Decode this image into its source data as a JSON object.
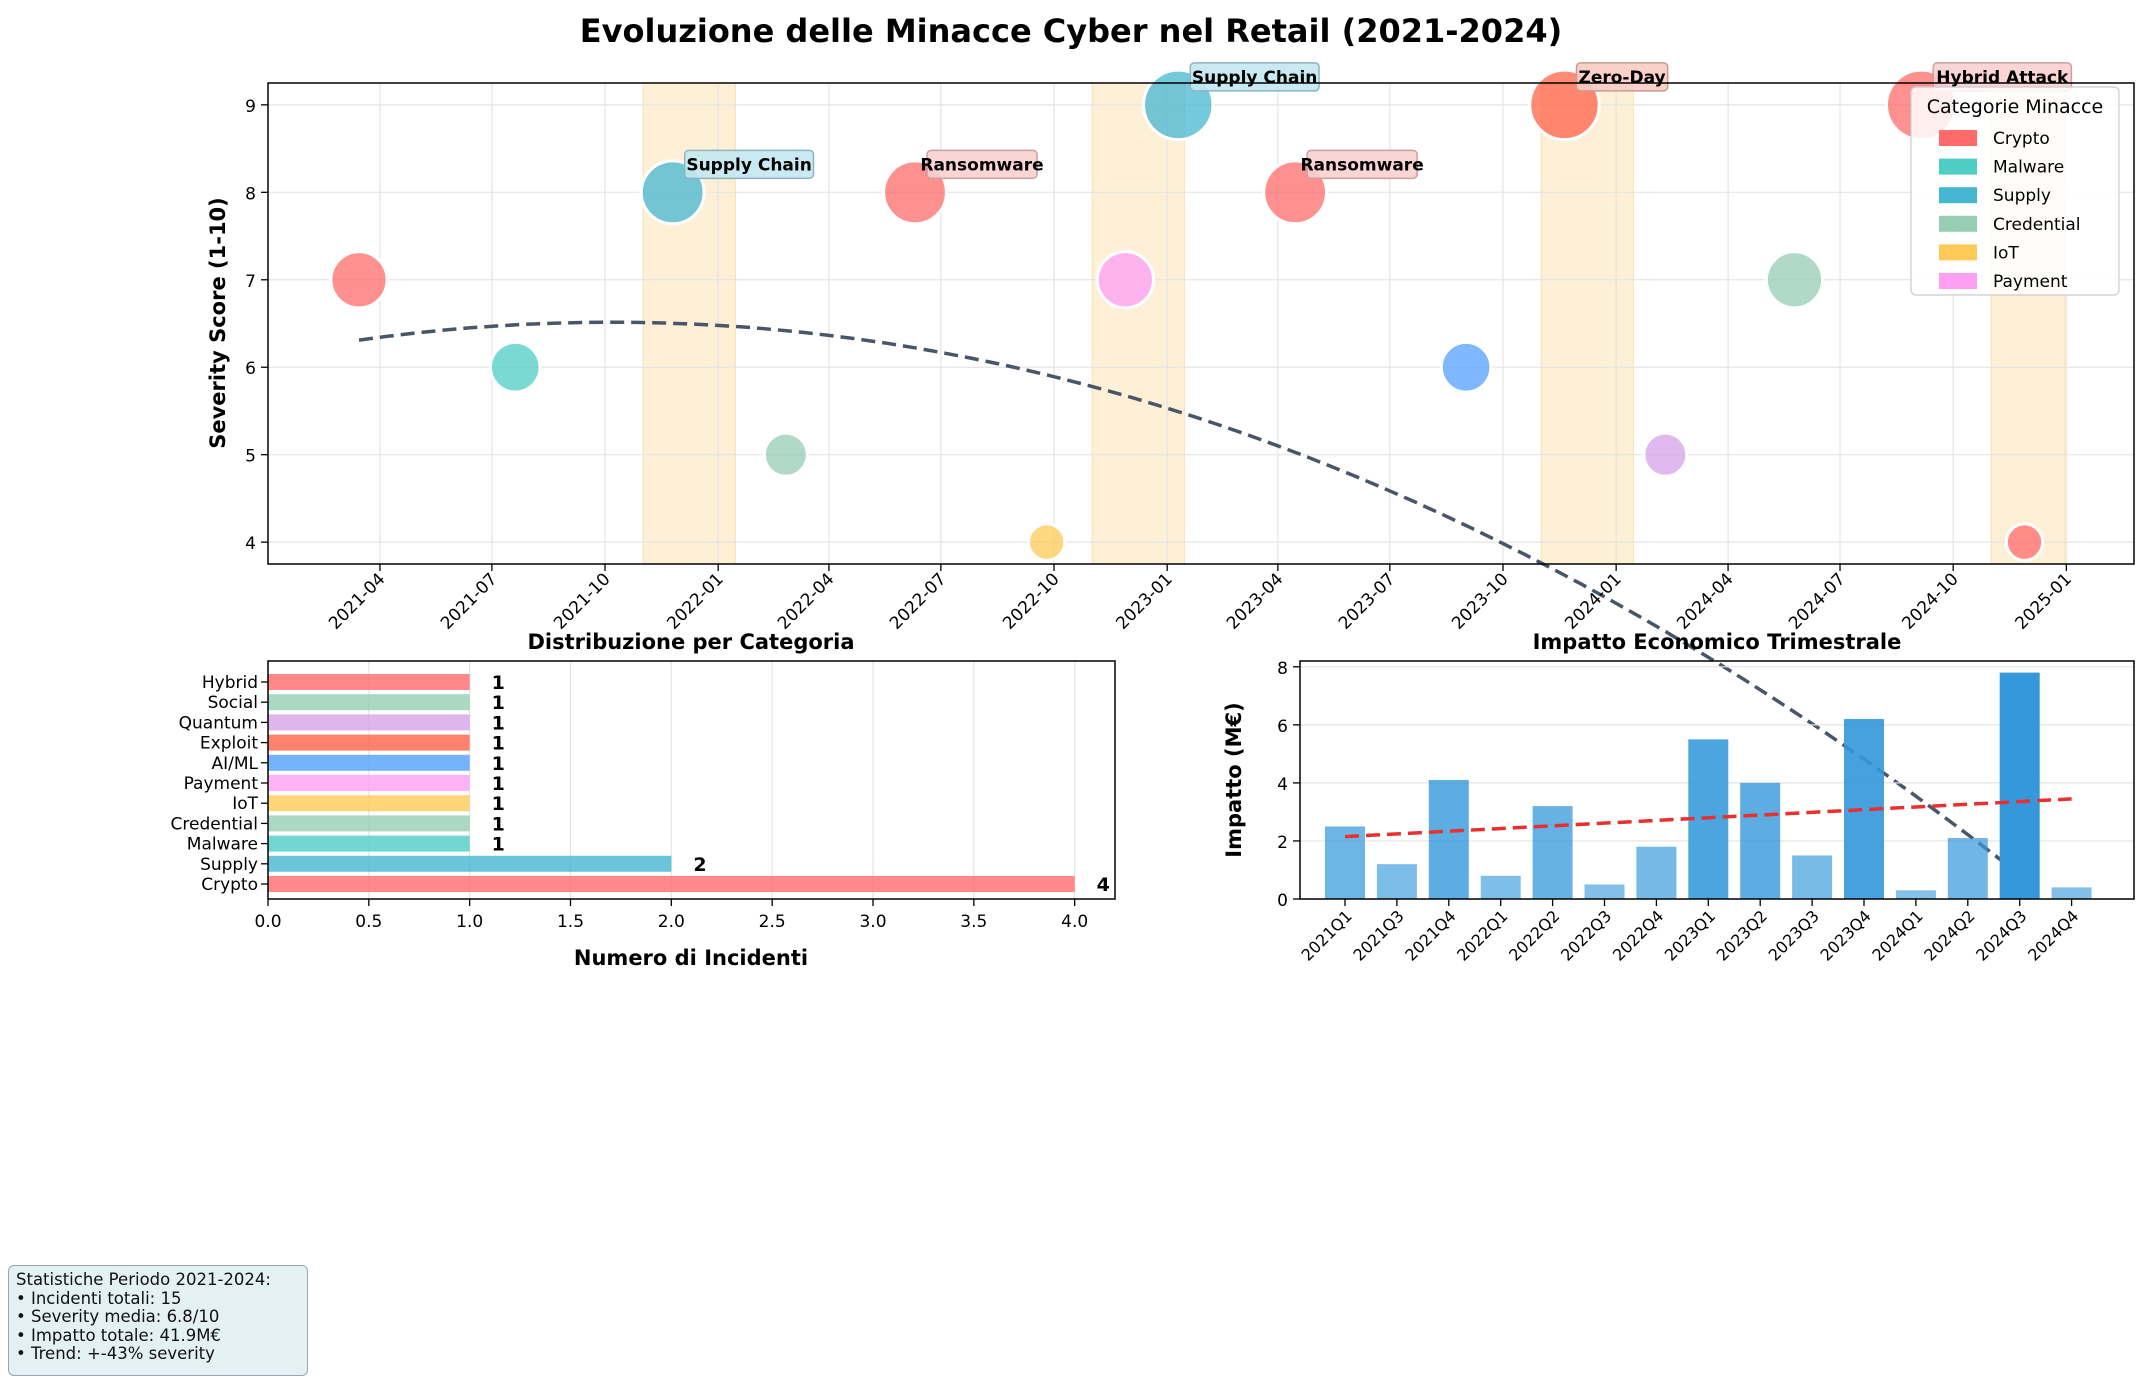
{
  "title": "Evoluzione delle Minacce Cyber nel Retail (2021-2024)",
  "timeline": {
    "type": "scatter",
    "ylabel": "Severity Score (1-10)",
    "ylim": [
      3.75,
      9.25
    ],
    "yticks": [
      4,
      5,
      6,
      7,
      8,
      9
    ],
    "xticks": [
      "2021-04",
      "2021-07",
      "2021-10",
      "2022-01",
      "2022-04",
      "2022-07",
      "2022-10",
      "2023-01",
      "2023-04",
      "2023-07",
      "2023-10",
      "2024-01",
      "2024-04",
      "2024-07",
      "2024-10",
      "2025-01"
    ],
    "xlim": [
      "2020-12-31",
      "2025-02-25"
    ],
    "points": [
      {
        "date": "2021-03-15",
        "severity": 7,
        "category": "Crypto",
        "color": "#ff6b6b"
      },
      {
        "date": "2021-07-20",
        "severity": 6,
        "category": "Malware",
        "color": "#4ecdc4"
      },
      {
        "date": "2021-11-25",
        "severity": 8,
        "category": "Supply",
        "color": "#45b7d1",
        "label": "Supply Chain"
      },
      {
        "date": "2022-02-25",
        "severity": 5,
        "category": "Credential",
        "color": "#96ceb4"
      },
      {
        "date": "2022-06-10",
        "severity": 8,
        "category": "Crypto",
        "color": "#ff6b6b",
        "label": "Ransomware"
      },
      {
        "date": "2022-09-25",
        "severity": 4,
        "category": "IoT",
        "color": "#feca57"
      },
      {
        "date": "2022-11-28",
        "severity": 7,
        "category": "Payment",
        "color": "#ff9ff3"
      },
      {
        "date": "2023-01-10",
        "severity": 9,
        "category": "Supply",
        "color": "#45b7d1",
        "label": "Supply Chain"
      },
      {
        "date": "2023-04-15",
        "severity": 8,
        "category": "Crypto",
        "color": "#ff6b6b",
        "label": "Ransomware"
      },
      {
        "date": "2023-09-01",
        "severity": 6,
        "category": "AI/ML",
        "color": "#54a0ff"
      },
      {
        "date": "2023-11-20",
        "severity": 9,
        "category": "Exploit",
        "color": "#ff6348",
        "label": "Zero-Day"
      },
      {
        "date": "2024-02-10",
        "severity": 5,
        "category": "Quantum",
        "color": "#d6a2e8"
      },
      {
        "date": "2024-05-25",
        "severity": 7,
        "category": "Social",
        "color": "#96ceb4"
      },
      {
        "date": "2024-09-05",
        "severity": 9,
        "category": "Hybrid",
        "color": "#ff6b6b",
        "label": "Hybrid Attack"
      },
      {
        "date": "2024-11-28",
        "severity": 4,
        "category": "Crypto",
        "color": "#ff6b6b"
      }
    ],
    "trend": {
      "x_start": "2021-03-15",
      "x_end": "2024-11-28",
      "coef": [
        -0.6434,
        0.7246,
        6.3106
      ]
    },
    "shaded_periods": [
      [
        "2021-11-01",
        "2022-01-15"
      ],
      [
        "2022-11-01",
        "2023-01-15"
      ],
      [
        "2023-11-01",
        "2024-01-15"
      ],
      [
        "2024-11-01",
        "2024-12-31"
      ]
    ],
    "legend": {
      "title": "Categorie Minacce",
      "position": "upper right",
      "entries": [
        {
          "name": "Crypto",
          "color": "#ff6b6b"
        },
        {
          "name": "Malware",
          "color": "#4ecdc4"
        },
        {
          "name": "Supply",
          "color": "#45b7d1"
        },
        {
          "name": "Credential",
          "color": "#96ceb4"
        },
        {
          "name": "IoT",
          "color": "#feca57"
        },
        {
          "name": "Payment",
          "color": "#ff9ff3"
        }
      ]
    }
  },
  "chart_data": [
    {
      "type": "bar",
      "orientation": "horizontal",
      "title": "Distribuzione per Categoria",
      "xlabel": "Numero di Incidenti",
      "xlim": [
        0,
        4.2
      ],
      "xticks": [
        0.0,
        0.5,
        1.0,
        1.5,
        2.0,
        2.5,
        3.0,
        3.5,
        4.0
      ],
      "categories": [
        "Crypto",
        "Supply",
        "Malware",
        "Credential",
        "IoT",
        "Payment",
        "AI/ML",
        "Exploit",
        "Quantum",
        "Social",
        "Hybrid"
      ],
      "values": [
        4,
        2,
        1,
        1,
        1,
        1,
        1,
        1,
        1,
        1,
        1
      ],
      "colors": [
        "#ff6b6b",
        "#45b7d1",
        "#4ecdc4",
        "#96ceb4",
        "#feca57",
        "#ff9ff3",
        "#54a0ff",
        "#ff6348",
        "#d6a2e8",
        "#96ceb4",
        "#ff6b6b"
      ]
    },
    {
      "type": "bar",
      "title": "Impatto Economico Trimestrale",
      "ylabel": "Impatto (M€)",
      "ylim": [
        0,
        8.2
      ],
      "yticks": [
        0,
        2,
        4,
        6,
        8
      ],
      "categories": [
        "2021Q1",
        "2021Q3",
        "2021Q4",
        "2022Q1",
        "2022Q2",
        "2022Q3",
        "2022Q4",
        "2023Q1",
        "2023Q2",
        "2023Q3",
        "2023Q4",
        "2024Q1",
        "2024Q2",
        "2024Q3",
        "2024Q4"
      ],
      "values": [
        2.5,
        1.2,
        4.1,
        0.8,
        3.2,
        0.5,
        1.8,
        5.5,
        4.0,
        1.5,
        6.2,
        0.3,
        2.1,
        7.8,
        0.4
      ],
      "trend": {
        "start": 2.15,
        "end": 3.45
      }
    }
  ],
  "stats": {
    "header": "Statistiche Periodo 2021-2024:",
    "lines": [
      "• Incidenti totali: 15",
      "• Severity media: 6.8/10",
      "• Impatto totale: 41.9M€",
      "• Trend: +-43% severity"
    ]
  }
}
